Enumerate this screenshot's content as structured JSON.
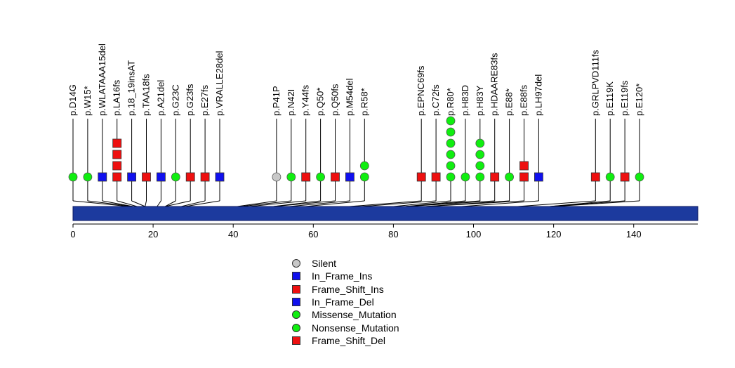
{
  "chart_data": {
    "type": "lollipop",
    "protein_length": 156,
    "x_ticks": [
      0,
      20,
      40,
      60,
      80,
      100,
      120,
      140
    ],
    "xlim": [
      0,
      156
    ],
    "mutation_types": {
      "Silent": {
        "shape": "circle",
        "color": "#c8c8c8"
      },
      "In_Frame_Ins": {
        "shape": "square",
        "color": "#1010ee"
      },
      "Frame_Shift_Ins": {
        "shape": "square",
        "color": "#ee1010"
      },
      "In_Frame_Del": {
        "shape": "square",
        "color": "#1010ee"
      },
      "Missense_Mutation": {
        "shape": "circle",
        "color": "#10ee10"
      },
      "Nonsense_Mutation": {
        "shape": "circle",
        "color": "#10ee10"
      },
      "Frame_Shift_Del": {
        "shape": "square",
        "color": "#ee1010"
      }
    },
    "mutations": [
      {
        "label": "p.D14G",
        "position": 14,
        "type": "Missense_Mutation",
        "count": 1
      },
      {
        "label": "p.W15*",
        "position": 15,
        "type": "Nonsense_Mutation",
        "count": 1
      },
      {
        "label": "p.WLATAAA15del",
        "position": 15,
        "type": "In_Frame_Del",
        "count": 1
      },
      {
        "label": "p.LA16fs",
        "position": 16,
        "type": "Frame_Shift_Del",
        "count": 4
      },
      {
        "label": "p.18_19insAT",
        "position": 18,
        "type": "In_Frame_Ins",
        "count": 1
      },
      {
        "label": "p.TAA18fs",
        "position": 18,
        "type": "Frame_Shift_Del",
        "count": 1
      },
      {
        "label": "p.A21del",
        "position": 21,
        "type": "In_Frame_Del",
        "count": 1
      },
      {
        "label": "p.G23C",
        "position": 23,
        "type": "Missense_Mutation",
        "count": 1
      },
      {
        "label": "p.G23fs",
        "position": 23,
        "type": "Frame_Shift_Del",
        "count": 1
      },
      {
        "label": "p.E27fs",
        "position": 27,
        "type": "Frame_Shift_Del",
        "count": 1
      },
      {
        "label": "p.VRALLE28del",
        "position": 28,
        "type": "In_Frame_Del",
        "count": 1
      },
      {
        "label": "p.P41P",
        "position": 41,
        "type": "Silent",
        "count": 1
      },
      {
        "label": "p.N42I",
        "position": 42,
        "type": "Missense_Mutation",
        "count": 1
      },
      {
        "label": "p.Y44fs",
        "position": 44,
        "type": "Frame_Shift_Del",
        "count": 1
      },
      {
        "label": "p.Q50*",
        "position": 50,
        "type": "Nonsense_Mutation",
        "count": 1
      },
      {
        "label": "p.Q50fs",
        "position": 50,
        "type": "Frame_Shift_Del",
        "count": 1
      },
      {
        "label": "p.M54del",
        "position": 54,
        "type": "In_Frame_Del",
        "count": 1
      },
      {
        "label": "p.R58*",
        "position": 58,
        "type": "Nonsense_Mutation",
        "count": 2
      },
      {
        "label": "p.EPNC69fs",
        "position": 69,
        "type": "Frame_Shift_Del",
        "count": 1
      },
      {
        "label": "p.C72fs",
        "position": 72,
        "type": "Frame_Shift_Del",
        "count": 1
      },
      {
        "label": "p.R80*",
        "position": 80,
        "type": "Nonsense_Mutation",
        "count": 6
      },
      {
        "label": "p.H83D",
        "position": 83,
        "type": "Missense_Mutation",
        "count": 1
      },
      {
        "label": "p.H83Y",
        "position": 83,
        "type": "Missense_Mutation",
        "count": 4
      },
      {
        "label": "p.HDAARE83fs",
        "position": 83,
        "type": "Frame_Shift_Del",
        "count": 1
      },
      {
        "label": "p.E88*",
        "position": 88,
        "type": "Nonsense_Mutation",
        "count": 1
      },
      {
        "label": "p.E88fs",
        "position": 88,
        "type": "Frame_Shift_Del",
        "count": 2
      },
      {
        "label": "p.LH97del",
        "position": 97,
        "type": "In_Frame_Del",
        "count": 1
      },
      {
        "label": "p.GRLPVD111fs",
        "position": 111,
        "type": "Frame_Shift_Del",
        "count": 1
      },
      {
        "label": "p.E119K",
        "position": 119,
        "type": "Missense_Mutation",
        "count": 1
      },
      {
        "label": "p.E119fs",
        "position": 119,
        "type": "Frame_Shift_Del",
        "count": 1
      },
      {
        "label": "p.E120*",
        "position": 120,
        "type": "Nonsense_Mutation",
        "count": 1
      }
    ],
    "legend": [
      "Silent",
      "In_Frame_Ins",
      "Frame_Shift_Ins",
      "In_Frame_Del",
      "Missense_Mutation",
      "Nonsense_Mutation",
      "Frame_Shift_Del"
    ],
    "legend_position": "bottom-center"
  }
}
